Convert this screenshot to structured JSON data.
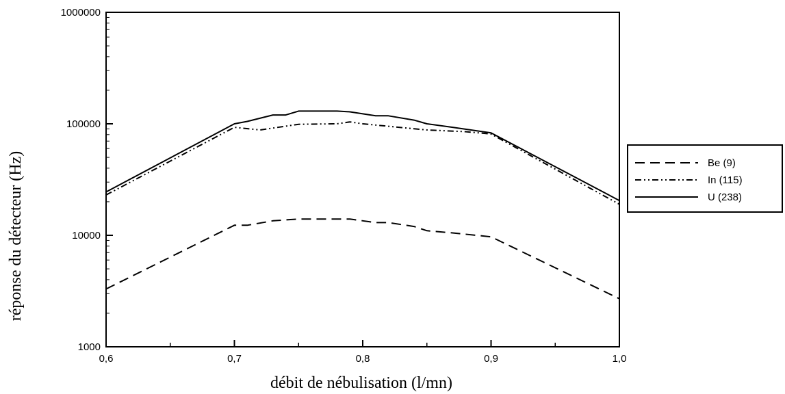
{
  "chart_data": {
    "type": "line",
    "title": "",
    "xlabel": "débit de nébulisation (l/mn)",
    "ylabel": "réponse du détecteur (Hz)",
    "xlim": [
      0.6,
      1.0
    ],
    "ylim": [
      1000,
      1000000
    ],
    "y_scale": "log",
    "grid": false,
    "legend_position": "right",
    "x_ticks": [
      0.6,
      0.7,
      0.8,
      0.9,
      1.0
    ],
    "x_tick_labels": [
      "0,6",
      "0,7",
      "0,8",
      "0,9",
      "1,0"
    ],
    "y_ticks": [
      1000,
      10000,
      100000,
      1000000
    ],
    "y_tick_labels": [
      "1000",
      "10000",
      "100000",
      "1000000"
    ],
    "series": [
      {
        "name": "Be (9)",
        "style": "dashed",
        "x": [
          0.6,
          0.7,
          0.71,
          0.73,
          0.75,
          0.78,
          0.79,
          0.81,
          0.82,
          0.84,
          0.85,
          0.87,
          0.9,
          1.0
        ],
        "y": [
          3300,
          12300,
          12300,
          13500,
          14000,
          14000,
          14000,
          13000,
          13000,
          12000,
          11000,
          10500,
          9700,
          2700
        ]
      },
      {
        "name": "In (115)",
        "style": "dash-dot",
        "x": [
          0.6,
          0.7,
          0.72,
          0.75,
          0.78,
          0.79,
          0.8,
          0.82,
          0.85,
          0.88,
          0.9,
          1.0
        ],
        "y": [
          23000,
          93000,
          88000,
          99000,
          100000,
          104000,
          100000,
          95000,
          88000,
          85000,
          81000,
          19000
        ]
      },
      {
        "name": "U (238)",
        "style": "solid",
        "x": [
          0.6,
          0.7,
          0.71,
          0.73,
          0.74,
          0.75,
          0.77,
          0.78,
          0.79,
          0.81,
          0.82,
          0.84,
          0.85,
          0.87,
          0.9,
          1.0
        ],
        "y": [
          24500,
          100000,
          105000,
          120000,
          120000,
          130000,
          130000,
          130000,
          128000,
          118000,
          118000,
          108000,
          100000,
          93000,
          83000,
          20500
        ]
      }
    ]
  }
}
